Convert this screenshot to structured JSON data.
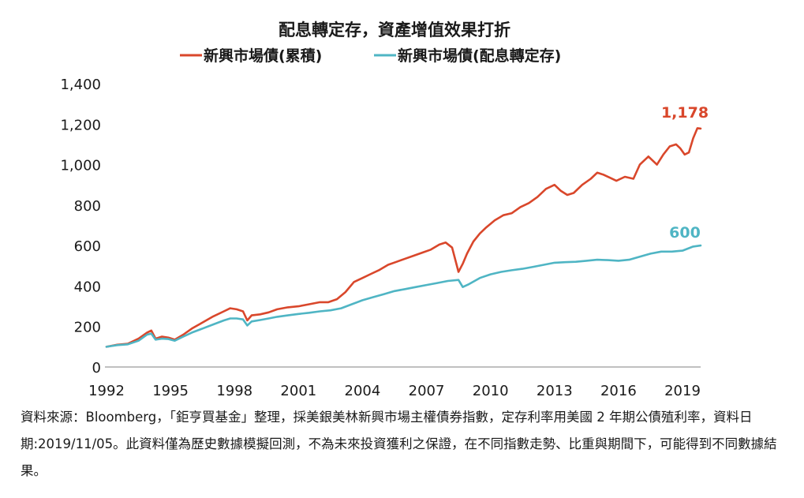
{
  "chart_data": {
    "type": "line",
    "title": "配息轉定存，資產增值效果打折",
    "xlabel": "",
    "ylabel": "",
    "xlim": [
      1992,
      2019.85
    ],
    "ylim": [
      0,
      1400
    ],
    "grid": false,
    "legend_position": "top-center",
    "x_ticks": [
      "1992",
      "1995",
      "1998",
      "2001",
      "2004",
      "2007",
      "2010",
      "2013",
      "2016",
      "2019"
    ],
    "y_ticks": [
      "0",
      "200",
      "400",
      "600",
      "800",
      "1,000",
      "1,200",
      "1,400"
    ],
    "series": [
      {
        "name": "新興市場債(累積)",
        "color": "#d9472b",
        "end_label": "1,178",
        "x": [
          1992.0,
          1992.5,
          1993.0,
          1993.5,
          1993.9,
          1994.1,
          1994.3,
          1994.6,
          1994.9,
          1995.2,
          1995.6,
          1996.0,
          1996.5,
          1997.0,
          1997.5,
          1997.8,
          1998.1,
          1998.4,
          1998.6,
          1998.8,
          1999.2,
          1999.6,
          2000.0,
          2000.5,
          2001.0,
          2001.5,
          2002.0,
          2002.4,
          2002.8,
          2003.2,
          2003.6,
          2004.0,
          2004.4,
          2004.8,
          2005.2,
          2005.6,
          2006.0,
          2006.4,
          2006.8,
          2007.2,
          2007.6,
          2007.9,
          2008.2,
          2008.5,
          2008.7,
          2008.9,
          2009.2,
          2009.5,
          2009.8,
          2010.2,
          2010.6,
          2011.0,
          2011.4,
          2011.8,
          2012.2,
          2012.6,
          2013.0,
          2013.3,
          2013.6,
          2013.9,
          2014.3,
          2014.7,
          2015.0,
          2015.3,
          2015.6,
          2015.9,
          2016.3,
          2016.7,
          2017.0,
          2017.4,
          2017.8,
          2018.1,
          2018.4,
          2018.7,
          2018.9,
          2019.1,
          2019.3,
          2019.5,
          2019.7,
          2019.85
        ],
        "y": [
          100,
          110,
          115,
          140,
          170,
          180,
          140,
          150,
          145,
          135,
          160,
          190,
          220,
          250,
          275,
          290,
          285,
          275,
          230,
          255,
          260,
          270,
          285,
          295,
          300,
          310,
          320,
          320,
          335,
          370,
          420,
          440,
          460,
          480,
          505,
          520,
          535,
          550,
          565,
          580,
          605,
          615,
          590,
          470,
          510,
          560,
          620,
          660,
          690,
          725,
          750,
          760,
          790,
          810,
          840,
          880,
          900,
          870,
          850,
          860,
          900,
          930,
          960,
          950,
          935,
          920,
          940,
          930,
          1000,
          1040,
          1000,
          1050,
          1090,
          1100,
          1080,
          1050,
          1060,
          1130,
          1180,
          1178
        ]
      },
      {
        "name": "新興市場債(配息轉定存)",
        "color": "#4fb5c4",
        "end_label": "600",
        "x": [
          1992.0,
          1992.5,
          1993.0,
          1993.5,
          1993.9,
          1994.1,
          1994.3,
          1994.6,
          1994.9,
          1995.2,
          1995.6,
          1996.0,
          1996.5,
          1997.0,
          1997.5,
          1997.8,
          1998.1,
          1998.4,
          1998.6,
          1998.8,
          1999.2,
          1999.6,
          2000.0,
          2000.5,
          2001.0,
          2001.5,
          2002.0,
          2002.5,
          2003.0,
          2003.5,
          2004.0,
          2004.5,
          2005.0,
          2005.5,
          2006.0,
          2006.5,
          2007.0,
          2007.5,
          2008.0,
          2008.5,
          2008.7,
          2009.0,
          2009.5,
          2010.0,
          2010.5,
          2011.0,
          2011.5,
          2012.0,
          2012.5,
          2013.0,
          2013.5,
          2014.0,
          2014.5,
          2015.0,
          2015.5,
          2016.0,
          2016.5,
          2017.0,
          2017.5,
          2018.0,
          2018.5,
          2019.0,
          2019.5,
          2019.85
        ],
        "y": [
          100,
          108,
          112,
          130,
          160,
          165,
          135,
          140,
          138,
          130,
          150,
          170,
          190,
          210,
          230,
          240,
          240,
          235,
          205,
          225,
          232,
          240,
          248,
          255,
          262,
          268,
          275,
          280,
          290,
          310,
          330,
          345,
          360,
          375,
          385,
          395,
          405,
          415,
          425,
          430,
          395,
          410,
          440,
          458,
          470,
          478,
          485,
          495,
          505,
          515,
          518,
          520,
          525,
          530,
          528,
          525,
          530,
          545,
          560,
          570,
          570,
          575,
          595,
          600
        ]
      }
    ]
  },
  "footnote": "資料來源：Bloomberg，「鉅亨買基金」整理，採美銀美林新興市場主權債券指數，定存利率用美國 2 年期公債殖利率，資料日期:2019/11/05。此資料僅為歷史數據模擬回測，不為未來投資獲利之保證，在不同指數走勢、比重與期間下，可能得到不同數據結果。"
}
